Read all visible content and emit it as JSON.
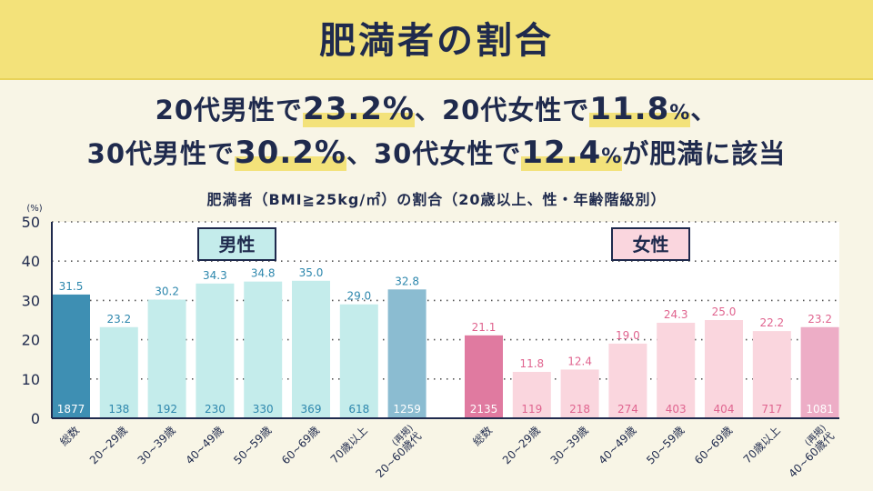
{
  "title": "肥満者の割合",
  "headline": {
    "line1": {
      "a": "20代男性で",
      "b": "23.2",
      "b_unit": "%",
      "c": "、20代女性で",
      "d": "11.8",
      "d_unit": "%",
      "e": "、"
    },
    "line2": {
      "a": "30代男性で",
      "b": "30.2",
      "b_unit": "%",
      "c": "、30代女性で",
      "d": "12.4",
      "d_unit": "%",
      "e": "が肥満に該当"
    }
  },
  "colors": {
    "title_bg": "#f3e27a",
    "background": "#f8f5e6",
    "text": "#1f2a4d",
    "male_total": "#3e8fb3",
    "male_age": "#c4eceb",
    "male_recap": "#8bbcd1",
    "female_total": "#e07aa0",
    "female_age": "#fad6de",
    "female_recap": "#edadc6",
    "male_label": "#2d87ad",
    "female_label": "#e0648f"
  },
  "chart_data": {
    "type": "bar",
    "title": "肥満者（BMI≧25kg/㎡）の割合（20歳以上、性・年齢階級別）",
    "ylabel": "(%)",
    "ylim": [
      0,
      50
    ],
    "yticks": [
      "0",
      "10",
      "20",
      "30",
      "40",
      "50"
    ],
    "grid": true,
    "categories": [
      "総数",
      "20~29歳",
      "30~39歳",
      "40~49歳",
      "50~59歳",
      "60~69歳",
      "70歳以上",
      "(再掲) 20~60歳代"
    ],
    "female_categories": [
      "総数",
      "20~29歳",
      "30~39歳",
      "40~49歳",
      "50~59歳",
      "60~69歳",
      "70歳以上",
      "(再掲) 40~60歳代"
    ],
    "series": [
      {
        "name": "男性",
        "values": [
          31.5,
          23.2,
          30.2,
          34.3,
          34.8,
          35.0,
          29.0,
          32.8
        ],
        "value_labels": [
          "31.5",
          "23.2",
          "30.2",
          "34.3",
          "34.8",
          "35.0",
          "29.0",
          "32.8"
        ],
        "n": [
          "1877",
          "138",
          "192",
          "230",
          "330",
          "369",
          "618",
          "1259"
        ]
      },
      {
        "name": "女性",
        "values": [
          21.1,
          11.8,
          12.4,
          19.0,
          24.3,
          25.0,
          22.2,
          23.2
        ],
        "value_labels": [
          "21.1",
          "11.8",
          "12.4",
          "19.0",
          "24.3",
          "25.0",
          "22.2",
          "23.2"
        ],
        "n": [
          "2135",
          "119",
          "218",
          "274",
          "403",
          "404",
          "717",
          "1081"
        ]
      }
    ]
  }
}
